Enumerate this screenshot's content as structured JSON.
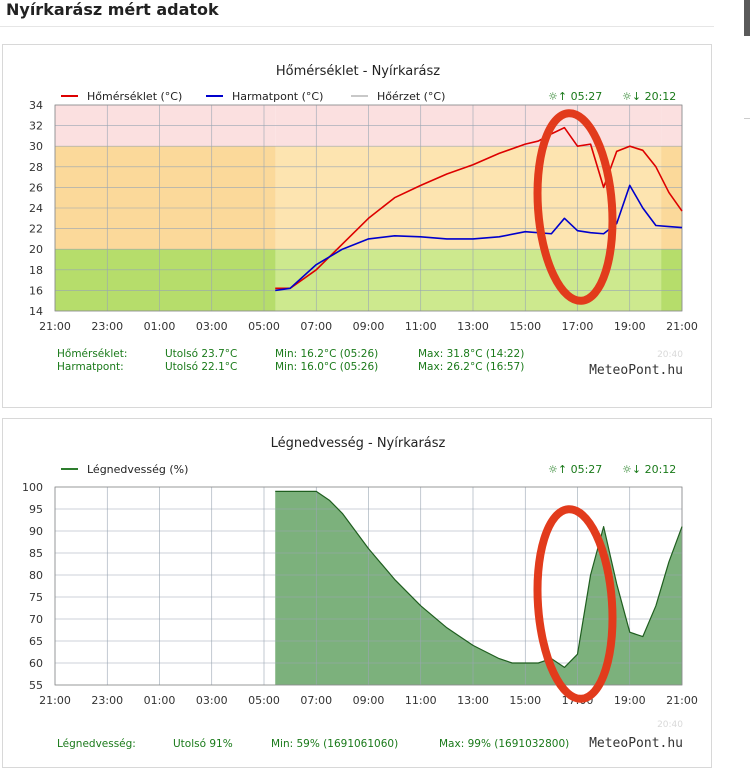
{
  "page": {
    "title": "Nyírkarász mért adatok"
  },
  "chart_data": [
    {
      "type": "line",
      "title": "Hőmérséklet - Nyírkarász",
      "x_ticks": [
        "21:00",
        "23:00",
        "01:00",
        "03:00",
        "05:00",
        "07:00",
        "09:00",
        "11:00",
        "13:00",
        "15:00",
        "17:00",
        "19:00",
        "21:00"
      ],
      "ylim": [
        14,
        34
      ],
      "y_ticks": [
        14,
        16,
        18,
        20,
        22,
        24,
        26,
        28,
        30,
        32,
        34
      ],
      "grid": true,
      "legend_position": "top-left",
      "sun": {
        "rise": "☼↑ 05:27",
        "set": "☼↓ 20:12"
      },
      "time_stamp": "20:40",
      "brand": "MeteoPont.hu",
      "series": [
        {
          "name": "Hőmérséklet (°C)",
          "color": "#dd0000",
          "x": [
            8.43,
            9,
            10,
            11,
            12,
            13,
            14,
            15,
            16,
            17,
            18,
            18.5,
            19,
            19.5,
            20,
            20.5,
            21,
            21.5,
            22,
            22.5,
            23,
            23.5,
            24
          ],
          "values": [
            16.2,
            16.2,
            18,
            20.5,
            23,
            25,
            26.2,
            27.3,
            28.2,
            29.3,
            30.2,
            30.5,
            31.2,
            31.8,
            30,
            30.2,
            26,
            29.5,
            30,
            29.6,
            28,
            25.5,
            23.7
          ]
        },
        {
          "name": "Harmatpont (°C)",
          "color": "#0000cc",
          "x": [
            8.43,
            9,
            10,
            11,
            12,
            13,
            14,
            15,
            16,
            17,
            18,
            19,
            19.5,
            20,
            20.5,
            21,
            21.5,
            22,
            22.5,
            23,
            23.5,
            24
          ],
          "values": [
            16.0,
            16.2,
            18.5,
            20,
            21,
            21.3,
            21.2,
            21,
            21,
            21.2,
            21.7,
            21.5,
            23,
            21.8,
            21.6,
            21.5,
            22.5,
            26.2,
            24,
            22.3,
            22.2,
            22.1
          ]
        },
        {
          "name": "Hőérzet (°C)",
          "color": "#c8c8c8",
          "x": [],
          "values": []
        }
      ],
      "summary": [
        {
          "label": "Hőmérséklet:",
          "last": "Utolsó 23.7°C",
          "min": "Min: 16.2°C (05:26)",
          "max": "Max: 31.8°C (14:22)"
        },
        {
          "label": "Harmatpont:",
          "last": "Utolsó 22.1°C",
          "min": "Min: 16.0°C (05:26)",
          "max": "Max: 26.2°C (16:57)"
        }
      ],
      "colors": {
        "hot": "#fbe0e0",
        "warm": "#fde4b0",
        "mild": "#cde98e",
        "night_warm": "#fbd99a",
        "night_mild": "#b6dd6b",
        "summary_text": "#1a7a1a"
      }
    },
    {
      "type": "area",
      "title": "Légnedvesség - Nyírkarász",
      "x_ticks": [
        "21:00",
        "23:00",
        "01:00",
        "03:00",
        "05:00",
        "07:00",
        "09:00",
        "11:00",
        "13:00",
        "15:00",
        "17:00",
        "19:00",
        "21:00"
      ],
      "ylim": [
        55,
        100
      ],
      "y_ticks": [
        55,
        60,
        65,
        70,
        75,
        80,
        85,
        90,
        95,
        100
      ],
      "grid": true,
      "legend_position": "top-left",
      "sun": {
        "rise": "☼↑ 05:27",
        "set": "☼↓ 20:12"
      },
      "time_stamp": "20:40",
      "brand": "MeteoPont.hu",
      "series": [
        {
          "name": "Légnedvesség (%)",
          "color": "#2e7d2e",
          "x": [
            8.43,
            9,
            10,
            10.5,
            11,
            12,
            13,
            14,
            15,
            16,
            17,
            17.5,
            18,
            18.5,
            19,
            19.5,
            20,
            20.5,
            21,
            21.5,
            22,
            22.5,
            23,
            23.5,
            24
          ],
          "values": [
            99,
            99,
            99,
            97,
            94,
            86,
            79,
            73,
            68,
            64,
            61,
            60,
            60,
            60,
            61,
            59,
            62,
            80,
            91,
            78,
            67,
            66,
            73,
            83,
            91
          ]
        }
      ],
      "summary": [
        {
          "label": "Légnedvesség:",
          "last": "Utolsó 91%",
          "min": "Min: 59% (1691061060)",
          "max": "Max: 99% (1691032800)"
        }
      ],
      "colors": {
        "fill": "#7cb17c",
        "summary_text": "#1a7a1a"
      }
    }
  ]
}
